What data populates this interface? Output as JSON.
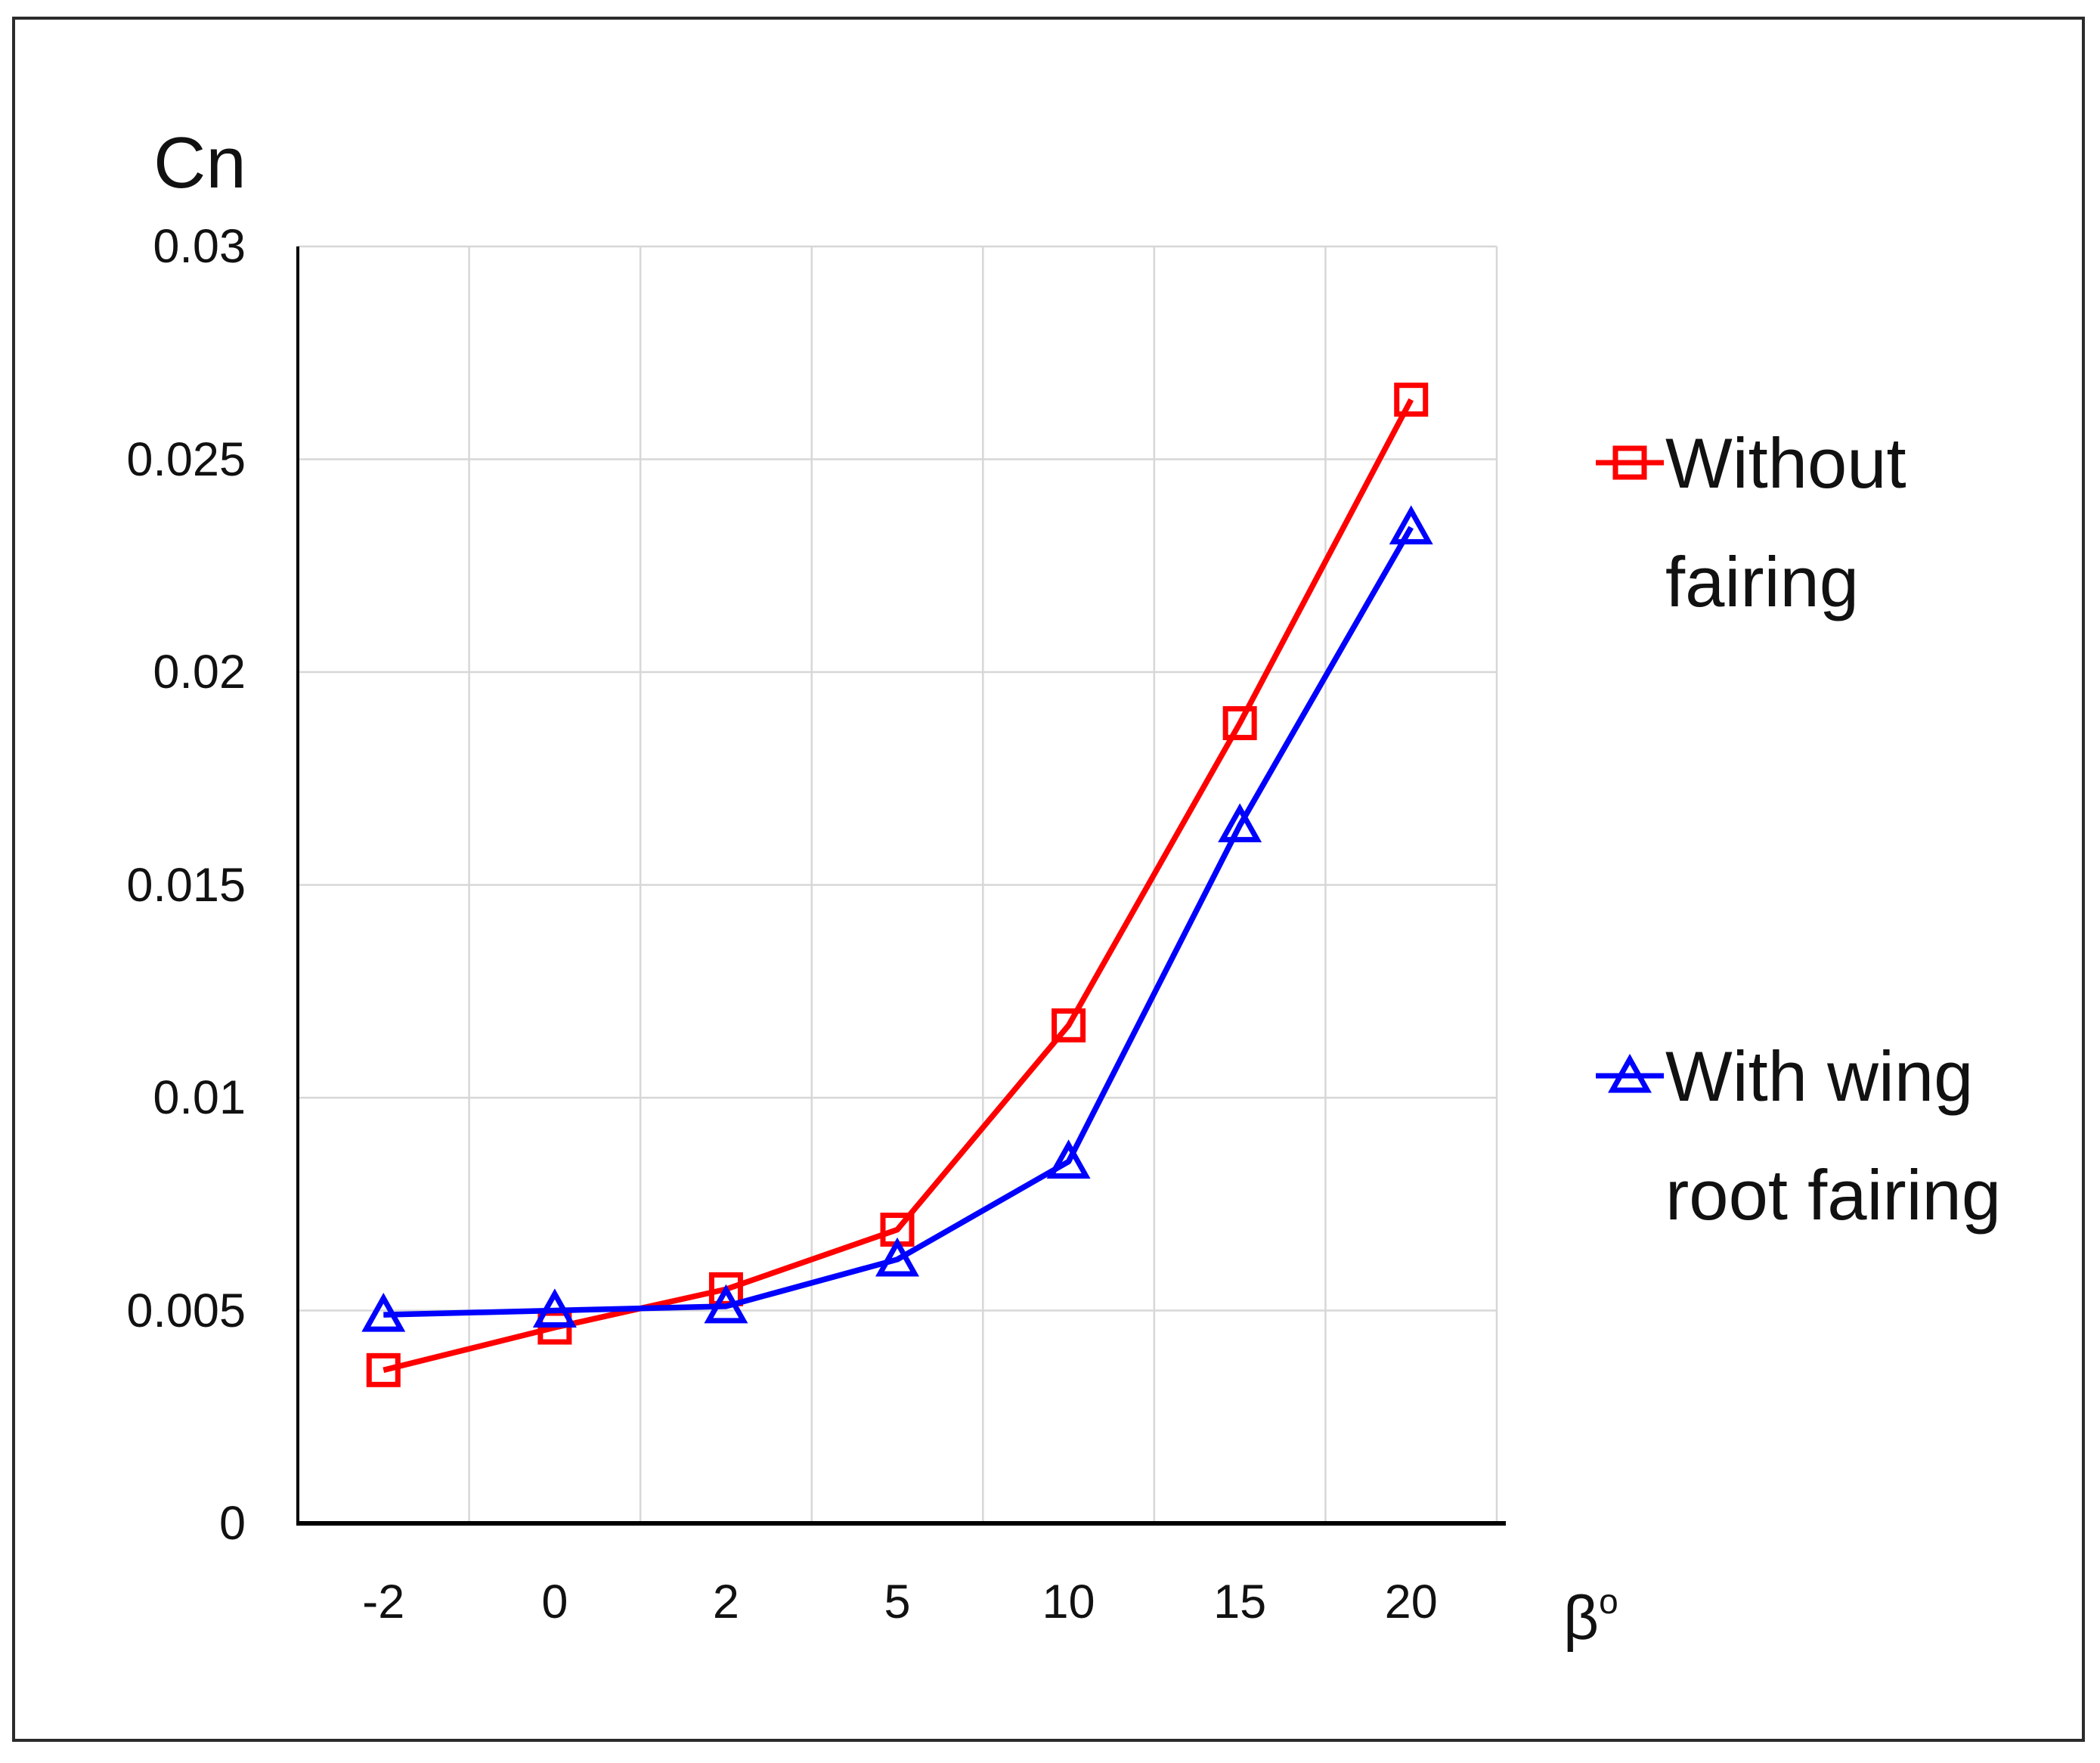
{
  "title": "Cn",
  "x_axis_label": {
    "base": "β",
    "superscript": "o"
  },
  "chart_data": {
    "type": "line",
    "title": "Cn",
    "xlabel": "β°",
    "ylabel": "Cn",
    "categories": [
      "-2",
      "0",
      "2",
      "5",
      "10",
      "15",
      "20"
    ],
    "series": [
      {
        "name": "Without fairing",
        "color": "#fe0000",
        "marker": "square",
        "values": [
          0.0036,
          0.0046,
          0.0055,
          0.0069,
          0.0117,
          0.0188,
          0.0264
        ]
      },
      {
        "name": "With wing root fairing",
        "color": "#0000fe",
        "marker": "triangle",
        "values": [
          0.0049,
          0.005,
          0.0051,
          0.0062,
          0.0085,
          0.0164,
          0.0234
        ]
      }
    ],
    "ylim": [
      0,
      0.03
    ],
    "y_ticks": [
      "0.03",
      "0.025",
      "0.02",
      "0.015",
      "0.01",
      "0.005",
      "0"
    ],
    "y_tick_values": [
      0.03,
      0.025,
      0.02,
      0.015,
      0.01,
      0.005,
      0
    ],
    "grid": true,
    "legend_position": "right"
  },
  "legend": {
    "items": [
      {
        "lines": [
          "Without",
          "fairing"
        ],
        "name": "Without fairing",
        "color": "#fe0000",
        "marker": "square"
      },
      {
        "lines": [
          "With wing",
          "root fairing"
        ],
        "name": "With wing root fairing",
        "color": "#0000fe",
        "marker": "triangle"
      }
    ]
  },
  "colors": {
    "background": "#ffffff",
    "border": "#2b2b2b",
    "grid": "#d7d7d7",
    "axis": "#000000",
    "text": "#111111",
    "series_without_fairing": "#fe0000",
    "series_with_wing_root_fairing": "#0000fe"
  }
}
